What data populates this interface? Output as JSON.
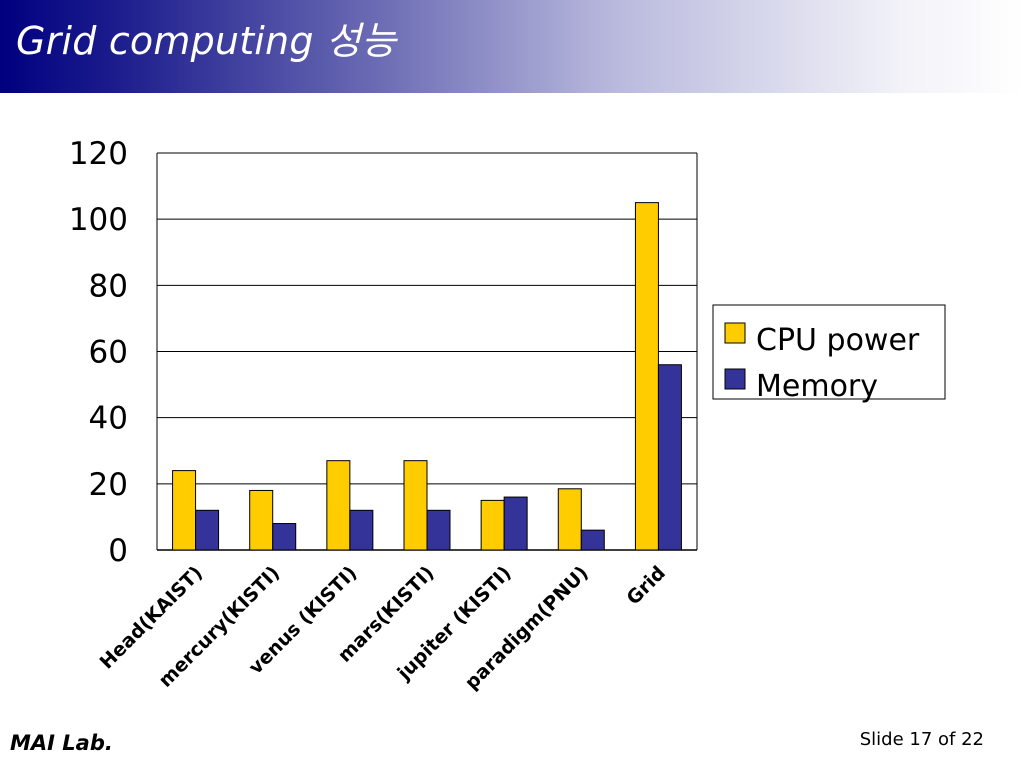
{
  "slide": {
    "title": "Grid computing 성능",
    "footer_left": "MAI Lab.",
    "footer_right": "Slide 17 of 22"
  },
  "colors": {
    "title_gradient_start": "#000080",
    "title_gradient_end": "#ffffff"
  },
  "chart_data": {
    "type": "bar",
    "categories": [
      "Head(KAIST)",
      "mercury(KISTI)",
      "venus (KISTI)",
      "mars(KISTI)",
      "jupiter  (KISTI)",
      "paradigm(PNU)",
      "Grid"
    ],
    "series": [
      {
        "name": "CPU power",
        "color": "#ffcc00",
        "values": [
          24,
          18,
          27,
          27,
          15,
          18.5,
          105
        ]
      },
      {
        "name": "Memory",
        "color": "#333399",
        "values": [
          12,
          8,
          12,
          12,
          16,
          6,
          56
        ]
      }
    ],
    "yticks": [
      0,
      20,
      40,
      60,
      80,
      100,
      120
    ],
    "ylim": [
      0,
      120
    ],
    "grid": true,
    "legend_position": "right",
    "title": "",
    "xlabel": "",
    "ylabel": ""
  }
}
